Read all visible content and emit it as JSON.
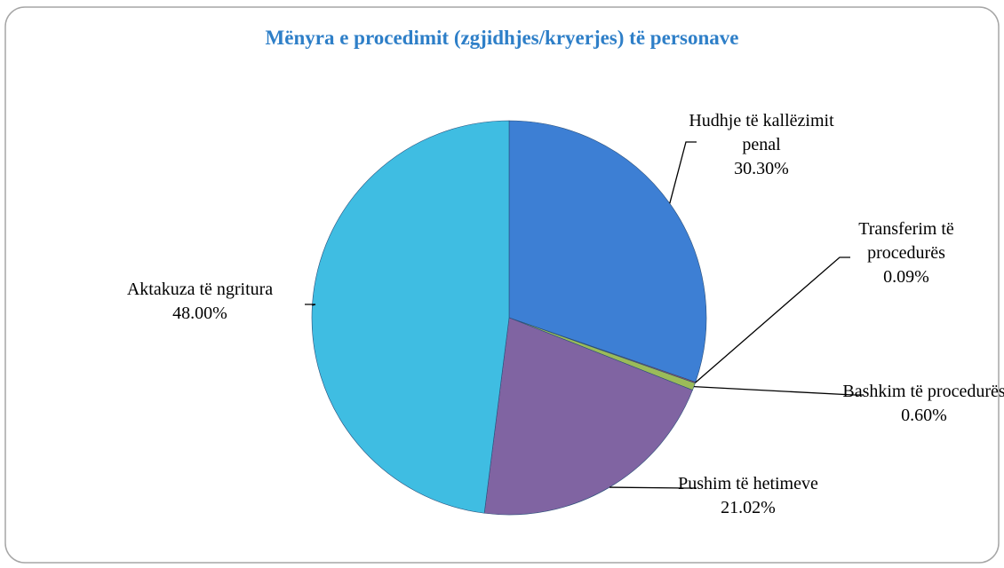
{
  "chart_data": {
    "type": "pie",
    "title": "Mënyra e procedimit (zgjidhjes/kryerjes) të personave",
    "categories": [
      "Hudhje të kallëzimit penal",
      "Transferim të procedurës",
      "Bashkim të procedurës",
      "Pushim të hetimeve",
      "Aktakuza të ngritura"
    ],
    "values": [
      30.3,
      0.09,
      0.6,
      21.02,
      48.0
    ],
    "value_labels": [
      "30.30%",
      "0.09%",
      "0.60%",
      "21.02%",
      "48.00%"
    ],
    "colors": [
      "#3d7fd4",
      "#c0504d",
      "#9bbb59",
      "#8064a2",
      "#3fbde2"
    ]
  }
}
